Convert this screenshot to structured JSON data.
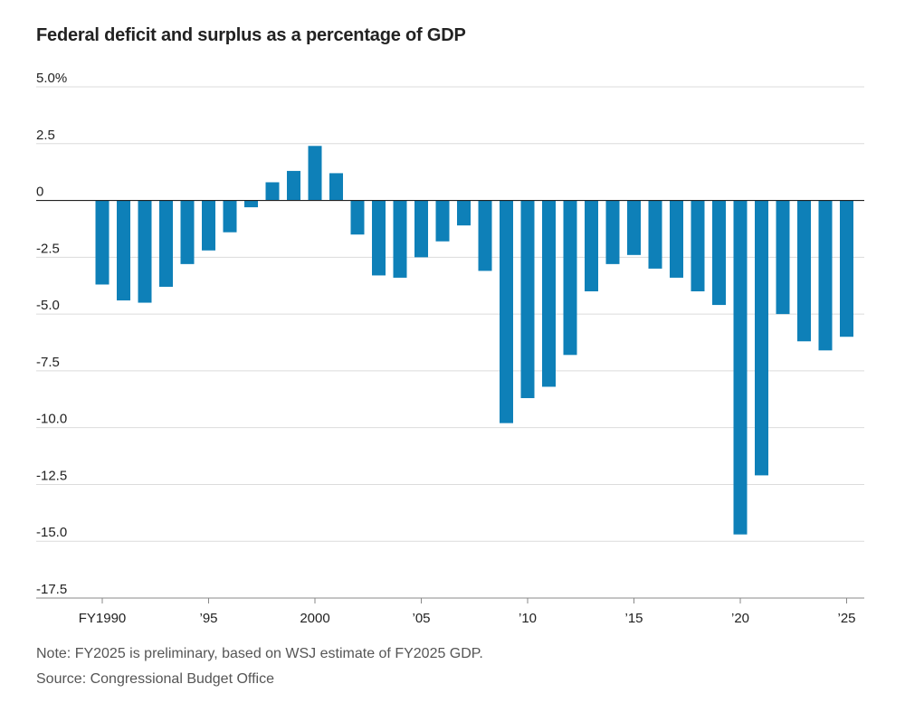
{
  "chart_data": {
    "type": "bar",
    "title": "Federal deficit and surplus as a percentage of GDP",
    "xlabel": "",
    "ylabel": "",
    "ylim": [
      -17.5,
      5.0
    ],
    "grid": true,
    "categories": [
      1990,
      1991,
      1992,
      1993,
      1994,
      1995,
      1996,
      1997,
      1998,
      1999,
      2000,
      2001,
      2002,
      2003,
      2004,
      2005,
      2006,
      2007,
      2008,
      2009,
      2010,
      2011,
      2012,
      2013,
      2014,
      2015,
      2016,
      2017,
      2018,
      2019,
      2020,
      2021,
      2022,
      2023,
      2024,
      2025
    ],
    "series": [
      {
        "name": "Deficit/surplus (% of GDP)",
        "color": "#0e80b8",
        "values": [
          -3.7,
          -4.4,
          -4.5,
          -3.8,
          -2.8,
          -2.2,
          -1.4,
          -0.3,
          0.8,
          1.3,
          2.4,
          1.2,
          -1.5,
          -3.3,
          -3.4,
          -2.5,
          -1.8,
          -1.1,
          -3.1,
          -9.8,
          -8.7,
          -8.2,
          -6.8,
          -4.0,
          -2.8,
          -2.4,
          -3.0,
          -3.4,
          -4.0,
          -4.6,
          -14.7,
          -12.1,
          -5.0,
          -6.2,
          -6.6,
          -6.0
        ]
      }
    ],
    "y_ticks": [
      {
        "value": 5.0,
        "label": "5.0%"
      },
      {
        "value": 2.5,
        "label": "2.5"
      },
      {
        "value": 0,
        "label": "0"
      },
      {
        "value": -2.5,
        "label": "-2.5"
      },
      {
        "value": -5.0,
        "label": "-5.0"
      },
      {
        "value": -7.5,
        "label": "-7.5"
      },
      {
        "value": -10.0,
        "label": "-10.0"
      },
      {
        "value": -12.5,
        "label": "-12.5"
      },
      {
        "value": -15.0,
        "label": "-15.0"
      },
      {
        "value": -17.5,
        "label": "-17.5"
      }
    ],
    "x_ticks": [
      {
        "year": 1990,
        "label": "FY1990"
      },
      {
        "year": 1995,
        "label": "’95"
      },
      {
        "year": 2000,
        "label": "2000"
      },
      {
        "year": 2005,
        "label": "’05"
      },
      {
        "year": 2010,
        "label": "’10"
      },
      {
        "year": 2015,
        "label": "’15"
      },
      {
        "year": 2020,
        "label": "’20"
      },
      {
        "year": 2025,
        "label": "’25"
      }
    ],
    "colors": {
      "bar": "#0e80b8",
      "grid": "#dcdcdc",
      "zero_line": "#222222",
      "axis": "#888888"
    }
  },
  "footer": {
    "note": "Note: FY2025 is preliminary, based on WSJ estimate of FY2025 GDP.",
    "source": "Source: Congressional Budget Office"
  }
}
